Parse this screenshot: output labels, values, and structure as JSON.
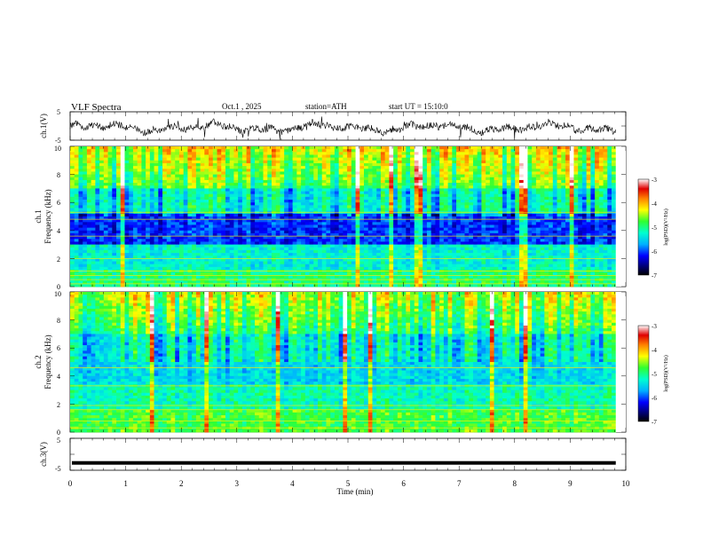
{
  "header": {
    "title": "VLF Spectra",
    "date": "Oct.1 , 2025",
    "station": "station=ATH",
    "start": "start UT = 15:10:0"
  },
  "chart_data": [
    {
      "type": "line",
      "panel": "ch1-waveform",
      "ylabel": "ch.1(V)",
      "ylim": [
        -5,
        5
      ],
      "yticks": [
        "5",
        "-5"
      ],
      "xlim": [
        0,
        10
      ],
      "trace_end_min": 9.82,
      "series_color": "#000000"
    },
    {
      "type": "heatmap",
      "panel": "ch1-spectrogram",
      "ylabel": "ch.1",
      "ylabel2": "Frequency (kHz)",
      "ylim": [
        0,
        10
      ],
      "yticks": [
        "0",
        "2",
        "4",
        "6",
        "8",
        "10"
      ],
      "xlim": [
        0,
        10
      ],
      "colorbar": {
        "label": "log(PSD)(V²/Hz)",
        "range": [
          -7,
          -3
        ],
        "ticks": [
          "-3",
          "-4",
          "-5",
          "-6",
          "-7"
        ]
      }
    },
    {
      "type": "heatmap",
      "panel": "ch2-spectrogram",
      "ylabel": "ch.2",
      "ylabel2": "Frequency (kHz)",
      "ylim": [
        0,
        10
      ],
      "yticks": [
        "0",
        "2",
        "4",
        "6",
        "8",
        "10"
      ],
      "xlim": [
        0,
        10
      ],
      "colorbar": {
        "label": "log(PSD)(V²/Hz)",
        "range": [
          -7,
          -3
        ],
        "ticks": [
          "-3",
          "-4",
          "-5",
          "-6",
          "-7"
        ]
      }
    },
    {
      "type": "line",
      "panel": "ch3-waveform",
      "ylabel": "ch.3(V)",
      "ylim": [
        -5,
        5
      ],
      "yticks": [
        "5",
        "-5"
      ],
      "xlim": [
        0,
        10
      ],
      "xlabel": "Time (min)",
      "xticks": [
        "0",
        "1",
        "2",
        "3",
        "4",
        "5",
        "6",
        "7",
        "8",
        "9",
        "10"
      ],
      "constant_value": -2.7,
      "series_color": "#000000"
    }
  ]
}
